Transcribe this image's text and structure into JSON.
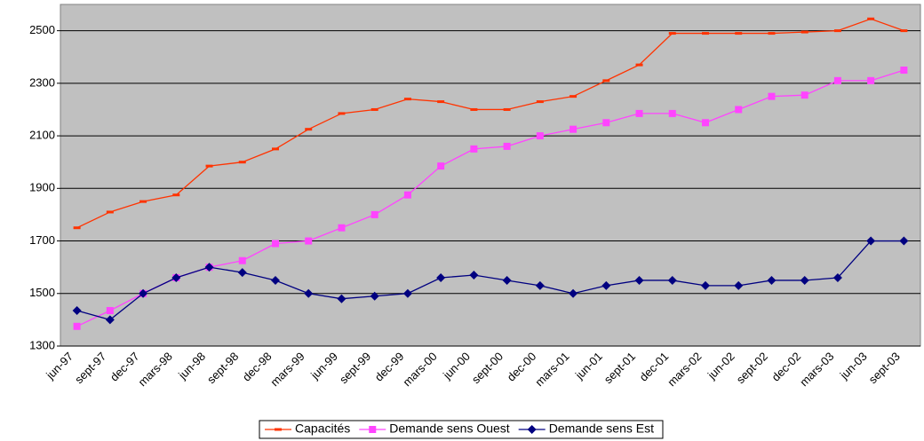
{
  "chart_data": {
    "type": "line",
    "categories": [
      "jun-97",
      "sept-97",
      "dec-97",
      "mars-98",
      "jun-98",
      "sept-98",
      "dec-98",
      "mars-99",
      "jun-99",
      "sept-99",
      "dec-99",
      "mars-00",
      "jun-00",
      "sept-00",
      "dec-00",
      "mars-01",
      "jun-01",
      "sept-01",
      "dec-01",
      "mars-02",
      "jun-02",
      "sept-02",
      "dec-02",
      "mars-03",
      "jun-03",
      "sept-03"
    ],
    "series": [
      {
        "name": "Capacités",
        "color": "#ff3300",
        "marker": "dash",
        "values": [
          1750,
          1810,
          1850,
          1875,
          1985,
          2000,
          2050,
          2125,
          2185,
          2200,
          2240,
          2230,
          2200,
          2200,
          2230,
          2250,
          2310,
          2370,
          2490,
          2490,
          2490,
          2490,
          2495,
          2500,
          2545,
          2500
        ]
      },
      {
        "name": "Demande sens Ouest",
        "color": "#ff44ff",
        "marker": "square",
        "values": [
          1375,
          1435,
          1500,
          1560,
          1600,
          1625,
          1690,
          1700,
          1750,
          1800,
          1875,
          1985,
          2050,
          2060,
          2100,
          2125,
          2150,
          2185,
          2185,
          2150,
          2200,
          2250,
          2255,
          2310,
          2310,
          2350
        ]
      },
      {
        "name": "Demande sens Est",
        "color": "#000080",
        "marker": "diamond",
        "values": [
          1435,
          1400,
          1500,
          1560,
          1600,
          1580,
          1550,
          1500,
          1480,
          1490,
          1500,
          1560,
          1570,
          1550,
          1530,
          1500,
          1530,
          1550,
          1550,
          1530,
          1530,
          1550,
          1550,
          1560,
          1700,
          1700
        ]
      }
    ],
    "ylim": [
      1300,
      2600
    ],
    "yticks": [
      1300,
      1500,
      1700,
      1900,
      2100,
      2300,
      2500
    ],
    "grid": true,
    "legend": "bottom"
  }
}
